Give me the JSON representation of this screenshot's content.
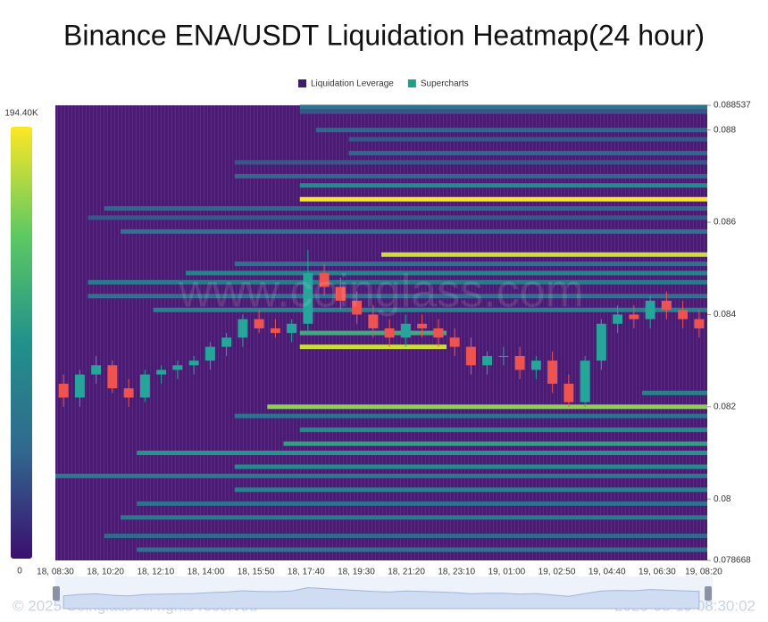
{
  "chart_data": {
    "type": "heatmap",
    "title": "Binance ENA/USDT Liquidation Heatmap(24 hour)",
    "legend": [
      {
        "name": "Liquidation Leverage",
        "color": "#3c1c6e"
      },
      {
        "name": "Supercharts",
        "color": "#1fa187"
      }
    ],
    "categories": [
      "18, 08:30",
      "18, 10:20",
      "18, 12:10",
      "18, 14:00",
      "18, 15:50",
      "18, 17:40",
      "18, 19:30",
      "18, 21:20",
      "18, 23:10",
      "19, 01:00",
      "19, 02:50",
      "19, 04:40",
      "19, 06:30",
      "19, 08:20"
    ],
    "ylim": [
      0.078668,
      0.088537
    ],
    "yticks": [
      0.088537,
      0.088,
      0.086,
      0.084,
      0.082,
      0.08,
      0.078668
    ],
    "clim": [
      0,
      194400
    ],
    "cticks": [
      0,
      {
        "value": 194400,
        "label": "194.40K"
      }
    ],
    "colors": [
      "#3b0f6f",
      "#31688e",
      "#21918c",
      "#5ec962",
      "#fde725"
    ],
    "candles": {
      "count": 40,
      "open": [
        0.0825,
        0.0822,
        0.0827,
        0.0829,
        0.0824,
        0.0822,
        0.0827,
        0.0828,
        0.0829,
        0.083,
        0.0833,
        0.0835,
        0.0839,
        0.0837,
        0.0836,
        0.0838,
        0.0849,
        0.0846,
        0.0843,
        0.084,
        0.0837,
        0.0835,
        0.0838,
        0.0837,
        0.0835,
        0.0833,
        0.0829,
        0.0831,
        0.0831,
        0.0828,
        0.083,
        0.0825,
        0.0821,
        0.083,
        0.0838,
        0.084,
        0.0839,
        0.0843,
        0.0841,
        0.0839
      ],
      "high": [
        0.0827,
        0.0828,
        0.0831,
        0.083,
        0.0826,
        0.0828,
        0.0829,
        0.083,
        0.0831,
        0.0834,
        0.0836,
        0.084,
        0.0841,
        0.0839,
        0.0839,
        0.0854,
        0.0851,
        0.0848,
        0.0845,
        0.0842,
        0.0839,
        0.084,
        0.084,
        0.0839,
        0.0837,
        0.0835,
        0.0832,
        0.0833,
        0.0833,
        0.0831,
        0.0832,
        0.0827,
        0.0831,
        0.0839,
        0.0842,
        0.0842,
        0.0844,
        0.0845,
        0.0843,
        0.0841
      ],
      "low": [
        0.082,
        0.082,
        0.0825,
        0.0823,
        0.082,
        0.0821,
        0.0825,
        0.0826,
        0.0827,
        0.0828,
        0.0831,
        0.0833,
        0.0836,
        0.0835,
        0.0834,
        0.0836,
        0.0844,
        0.0841,
        0.0838,
        0.0835,
        0.0833,
        0.0833,
        0.0835,
        0.0833,
        0.0831,
        0.0827,
        0.0827,
        0.0829,
        0.0826,
        0.0826,
        0.0823,
        0.082,
        0.082,
        0.0828,
        0.0836,
        0.0837,
        0.0837,
        0.0839,
        0.0837,
        0.0835
      ],
      "close": [
        0.0822,
        0.0827,
        0.0829,
        0.0824,
        0.0822,
        0.0827,
        0.0828,
        0.0829,
        0.083,
        0.0833,
        0.0835,
        0.0839,
        0.0837,
        0.0836,
        0.0838,
        0.0849,
        0.0846,
        0.0843,
        0.084,
        0.0837,
        0.0835,
        0.0838,
        0.0837,
        0.0835,
        0.0833,
        0.0829,
        0.0831,
        0.0831,
        0.0828,
        0.083,
        0.0825,
        0.0821,
        0.083,
        0.0838,
        0.084,
        0.0839,
        0.0843,
        0.0841,
        0.0839,
        0.0837
      ]
    },
    "bands": {
      "price": [
        0.0885,
        0.0884,
        0.088,
        0.0878,
        0.0875,
        0.0873,
        0.087,
        0.0868,
        0.0865,
        0.0863,
        0.0861,
        0.0858,
        0.0853,
        0.0851,
        0.0849,
        0.0847,
        0.0844,
        0.0841,
        0.0836,
        0.0833,
        0.0823,
        0.082,
        0.0818,
        0.0815,
        0.0812,
        0.081,
        0.0807,
        0.0805,
        0.0802,
        0.0799,
        0.0796,
        0.0792,
        0.0789
      ],
      "start": [
        15,
        15,
        16,
        18,
        18,
        11,
        11,
        15,
        15,
        3,
        2,
        4,
        20,
        11,
        8,
        2,
        2,
        6,
        15,
        15,
        36,
        13,
        11,
        15,
        14,
        5,
        11,
        0,
        11,
        5,
        4,
        3,
        5
      ],
      "end": [
        40,
        40,
        40,
        40,
        40,
        40,
        40,
        40,
        40,
        40,
        40,
        40,
        40,
        40,
        40,
        40,
        40,
        40,
        24,
        24,
        40,
        40,
        40,
        40,
        40,
        40,
        40,
        40,
        40,
        40,
        40,
        40,
        40
      ],
      "value": [
        60000,
        40000,
        50000,
        40000,
        50000,
        40000,
        50000,
        90000,
        194000,
        50000,
        40000,
        60000,
        180000,
        60000,
        80000,
        70000,
        60000,
        80000,
        120000,
        180000,
        80000,
        160000,
        60000,
        90000,
        110000,
        100000,
        90000,
        70000,
        80000,
        60000,
        70000,
        50000,
        60000
      ]
    },
    "watermark": "www.coinglass.com",
    "footer": "© 2025 Coinglass All rights reserved",
    "timestamp": "2025-08-19 08:30:02"
  }
}
